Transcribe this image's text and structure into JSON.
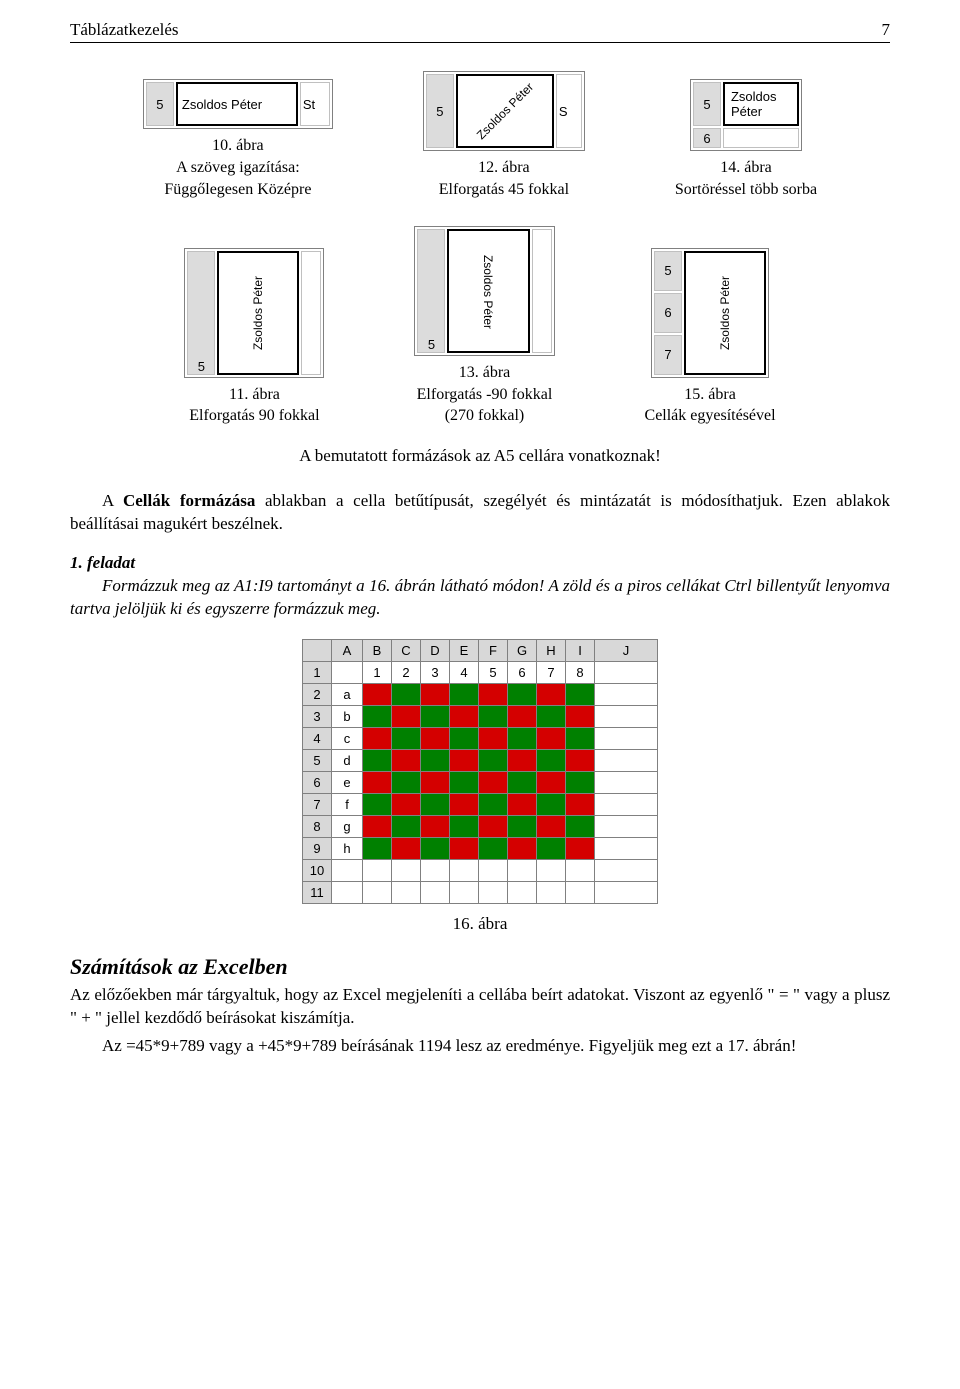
{
  "header": {
    "title": "Táblázatkezelés",
    "page": "7"
  },
  "row1": {
    "cell_text": "Zsoldos Péter",
    "fig10": {
      "label": "10. ábra",
      "sub": "A szöveg igazítása:\nFüggőlegesen Középre",
      "extra": "St",
      "rownum": "5"
    },
    "fig12": {
      "label": "12. ábra",
      "sub": "Elforgatás 45 fokkal",
      "extra": "S",
      "rownum": "5"
    },
    "fig14": {
      "label": "14. ábra",
      "sub": "Sortöréssel több sorba",
      "rows": [
        "5",
        "6"
      ]
    }
  },
  "row2": {
    "cell_text": "Zsoldos Péter",
    "fig11": {
      "label": "11. ábra",
      "sub": "Elforgatás 90 fokkal",
      "rownum": "5"
    },
    "fig13": {
      "label": "13. ábra",
      "sub": "Elforgatás -90 fokkal\n(270 fokkal)",
      "rownum": "5"
    },
    "fig15": {
      "label": "15. ábra",
      "sub": "Cellák egyesítésével",
      "rows": [
        "5",
        "6",
        "7"
      ]
    }
  },
  "note_center": "A bemutatott formázások az A5 cellára vonatkoznak!",
  "para_cells": {
    "pre": "A ",
    "bold": "Cellák formázása",
    "post": " ablakban a cella betűtípusát, szegélyét és mintázatát is módosíthatjuk. Ezen ablakok beállításai magukért beszélnek."
  },
  "task": {
    "heading": "1. feladat",
    "line1": "Formázzuk meg az A1:I9 tartományt a 16. ábrán látható módon! A zöld és a piros cellákat Ctrl billentyűt lenyomva tartva jelöljük ki és egyszerre formázzuk meg."
  },
  "checker": {
    "cols": [
      "A",
      "B",
      "C",
      "D",
      "E",
      "F",
      "G",
      "H",
      "I",
      "J"
    ],
    "top_row_values": [
      "",
      "1",
      "2",
      "3",
      "4",
      "5",
      "6",
      "7",
      "8",
      ""
    ],
    "side_labels": [
      "a",
      "b",
      "c",
      "d",
      "e",
      "f",
      "g",
      "h"
    ],
    "rows": [
      "1",
      "2",
      "3",
      "4",
      "5",
      "6",
      "7",
      "8",
      "9",
      "10",
      "11"
    ],
    "colors": {
      "red": "#d40000",
      "green": "#008000"
    }
  },
  "fig16": "16. ábra",
  "section": {
    "title": "Számítások az Excelben",
    "p1_a": "Az előzőekben már tárgyaltuk, hogy az Excel megjeleníti a cellába beírt adatokat. Viszont az egyenlő \" = \" vagy a plusz \" + \" jellel kezdődő beírásokat kiszámítja.",
    "p2": "Az =45*9+789 vagy a +45*9+789 beírásának 1194 lesz az eredménye. Figyeljük meg ezt a 17. ábrán!"
  }
}
